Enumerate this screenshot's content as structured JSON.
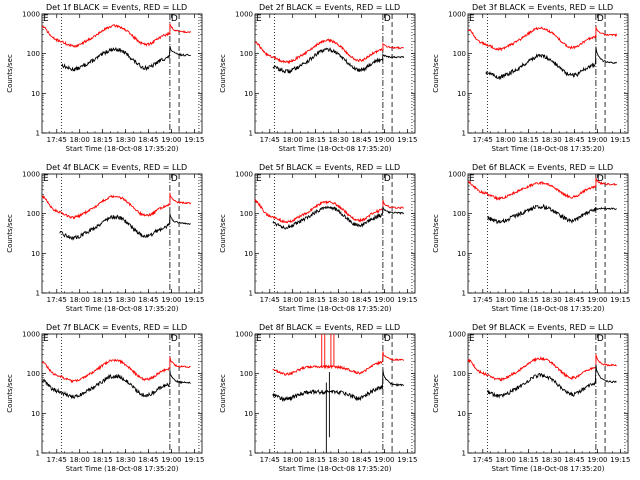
{
  "chart_data": {
    "type": "line",
    "layout": "3x3 grid of time-series panels",
    "x_axis": {
      "label": "Start Time (18-Oct-08 17:35:20)",
      "range": [
        "17:35:20",
        "19:20:00"
      ],
      "tick_labels": [
        "17:45",
        "18:00",
        "18:15",
        "18:30",
        "18:45",
        "19:00",
        "19:15"
      ]
    },
    "y_axis": {
      "label": "Counts/sec",
      "scale": "log",
      "range": [
        1,
        1000
      ],
      "tick_labels": [
        "1",
        "10",
        "100",
        "1000"
      ]
    },
    "legend_text": "BLACK = Events, RED = LLD",
    "series_colors": {
      "events": "#000000",
      "lld": "#ff0000"
    },
    "markers": {
      "dotted": [
        "17:48",
        "19:18"
      ],
      "dash_dot": [
        "18:59"
      ],
      "dashed": [
        "19:05"
      ],
      "flag_left": "E",
      "flag_right": "D",
      "flag_right_time": "18:59"
    },
    "panels": [
      {
        "title": "Det 1f BLACK = Events, RED = LLD",
        "events_level": 62,
        "lld_level": 240,
        "start_bump_events": 1.9,
        "start_bump_lld": 2.0,
        "peak_factor": 2.1,
        "jump_events": 1.9,
        "jump_lld": 1.8,
        "events_start": "17:48",
        "lld_start": "17:35:20",
        "late_drop": false
      },
      {
        "title": "Det 2f BLACK = Events, RED = LLD",
        "events_level": 55,
        "lld_level": 95,
        "start_bump_events": 1.0,
        "start_bump_lld": 2.0,
        "peak_factor": 2.3,
        "jump_events": 1.3,
        "jump_lld": 1.4,
        "events_start": "17:47",
        "lld_start": "17:35:20",
        "late_drop": false
      },
      {
        "title": "Det 3f BLACK = Events, RED = LLD",
        "events_level": 40,
        "lld_level": 200,
        "start_bump_events": 1.0,
        "start_bump_lld": 2.0,
        "peak_factor": 2.2,
        "jump_events": 2.8,
        "jump_lld": 1.8,
        "events_start": "17:47",
        "lld_start": "17:35:20",
        "late_drop": false
      },
      {
        "title": "Det 4f BLACK = Events, RED = LLD",
        "events_level": 38,
        "lld_level": 125,
        "start_bump_events": 1.9,
        "start_bump_lld": 2.2,
        "peak_factor": 2.2,
        "jump_events": 2.0,
        "jump_lld": 2.0,
        "events_start": "17:47",
        "lld_start": "17:35:20",
        "late_drop": false
      },
      {
        "title": "Det 5f BLACK = Events, RED = LLD",
        "events_level": 70,
        "lld_level": 95,
        "start_bump_events": 1.0,
        "start_bump_lld": 2.2,
        "peak_factor": 2.1,
        "jump_events": 1.6,
        "jump_lld": 1.7,
        "events_start": "17:47",
        "lld_start": "17:35:20",
        "late_drop": false
      },
      {
        "title": "Det 6f BLACK = Events, RED = LLD",
        "events_level": 95,
        "lld_level": 370,
        "start_bump_events": 1.0,
        "start_bump_lld": 1.7,
        "peak_factor": 1.6,
        "jump_events": 1.0,
        "jump_lld": 1.6,
        "events_start": "17:48",
        "lld_start": "17:35:20",
        "late_drop": false
      },
      {
        "title": "Det 7f BLACK = Events, RED = LLD",
        "events_level": 40,
        "lld_level": 100,
        "start_bump_events": 1.7,
        "start_bump_lld": 1.9,
        "peak_factor": 2.2,
        "jump_events": 2.2,
        "jump_lld": 2.0,
        "events_start": "17:35:20",
        "lld_start": "17:35:20",
        "late_drop": false
      },
      {
        "title": "Det 8f BLACK = Events, RED = LLD",
        "events_level": 35,
        "lld_level": 150,
        "start_bump_events": 1.9,
        "start_bump_lld": 2.0,
        "peak_factor": 1.0,
        "jump_events": 2.7,
        "jump_lld": 1.8,
        "events_start": "17:47",
        "lld_start": "17:47",
        "late_drop": false
      },
      {
        "title": "Det 9f BLACK = Events, RED = LLD",
        "events_level": 42,
        "lld_level": 110,
        "start_bump_events": 1.0,
        "start_bump_lld": 2.0,
        "peak_factor": 2.2,
        "jump_events": 3.0,
        "jump_lld": 2.1,
        "events_start": "17:48",
        "lld_start": "17:35:20",
        "late_drop": false
      }
    ]
  }
}
